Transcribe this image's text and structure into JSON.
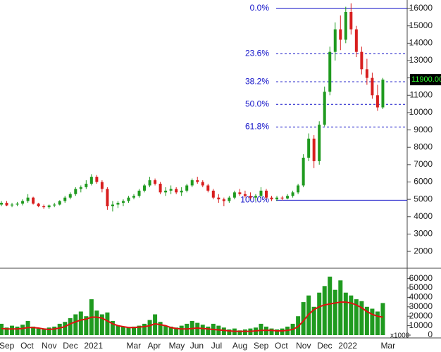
{
  "chart_data": [
    {
      "type": "candlestick",
      "categories": [
        "Sep",
        null,
        null,
        null,
        "Oct",
        null,
        null,
        null,
        "Nov",
        null,
        null,
        null,
        "Dec",
        null,
        null,
        null,
        "2021",
        null,
        null,
        null,
        null,
        null,
        null,
        null,
        "Mar",
        null,
        null,
        null,
        "Apr",
        null,
        null,
        null,
        "May",
        null,
        null,
        null,
        "Jun",
        null,
        null,
        null,
        "Jul",
        null,
        null,
        null,
        "Aug",
        null,
        null,
        null,
        "Sep",
        null,
        null,
        null,
        "Oct",
        null,
        null,
        null,
        "Nov",
        null,
        null,
        null,
        "Dec",
        null,
        null,
        null,
        "2022",
        null,
        null,
        null,
        null,
        null,
        null,
        null,
        "Mar"
      ],
      "open": [
        4700,
        4800,
        4650,
        4700,
        4750,
        4900,
        5100,
        4750,
        4600,
        4550,
        4650,
        4700,
        4900,
        5100,
        5300,
        5600,
        5700,
        5900,
        6300,
        6000,
        5600,
        4600,
        4700,
        4800,
        4900,
        5100,
        5200,
        5500,
        5800,
        6100,
        5900,
        5400,
        5500,
        5600,
        5400,
        5500,
        5800,
        6100,
        6000,
        5800,
        5500,
        5100,
        5000,
        4900,
        5100,
        5400,
        5300,
        5200,
        5100,
        5200,
        5500,
        5100,
        5000,
        5100,
        5050,
        5200,
        5400,
        5800,
        7400,
        8500,
        7200,
        9300,
        11200,
        13500,
        14800,
        14200,
        15800,
        14800,
        13500,
        12500,
        12000,
        11000,
        10300
      ],
      "high": [
        4900,
        4900,
        4800,
        4850,
        5000,
        5300,
        5150,
        4800,
        4700,
        4700,
        4800,
        4950,
        5200,
        5400,
        5700,
        5800,
        6100,
        6450,
        6400,
        6100,
        5700,
        4900,
        4900,
        5000,
        5200,
        5300,
        5600,
        5900,
        6300,
        6200,
        6000,
        5700,
        5800,
        5700,
        5700,
        5900,
        6200,
        6300,
        6100,
        5900,
        5600,
        5300,
        5100,
        5200,
        5500,
        5600,
        5500,
        5400,
        5300,
        5700,
        5600,
        5200,
        5200,
        5200,
        5300,
        5500,
        5900,
        7600,
        8800,
        8700,
        9500,
        11500,
        13800,
        15200,
        15600,
        16100,
        16300,
        15000,
        13800,
        13100,
        12300,
        11600,
        12000
      ],
      "low": [
        4600,
        4600,
        4550,
        4600,
        4650,
        4800,
        4700,
        4550,
        4450,
        4450,
        4550,
        4650,
        4800,
        5000,
        5200,
        5400,
        5600,
        5800,
        5900,
        5400,
        4400,
        4300,
        4500,
        4600,
        4800,
        5000,
        5100,
        5400,
        5700,
        5800,
        5300,
        5200,
        5300,
        5300,
        5200,
        5400,
        5700,
        5900,
        5700,
        5400,
        5000,
        4800,
        4600,
        4800,
        5000,
        5200,
        5100,
        5000,
        4900,
        5100,
        5000,
        4900,
        4900,
        4950,
        5000,
        5100,
        5300,
        5700,
        7200,
        6800,
        7000,
        9200,
        11000,
        13000,
        13600,
        14000,
        14500,
        13200,
        12200,
        11600,
        10800,
        10100,
        10200
      ],
      "close": [
        4800,
        4650,
        4700,
        4750,
        4900,
        5100,
        4750,
        4600,
        4550,
        4650,
        4700,
        4900,
        5100,
        5300,
        5600,
        5700,
        5900,
        6300,
        6000,
        5600,
        4600,
        4700,
        4800,
        4900,
        5100,
        5200,
        5500,
        5800,
        6100,
        5900,
        5400,
        5500,
        5600,
        5400,
        5500,
        5800,
        6100,
        6000,
        5800,
        5500,
        5100,
        5000,
        4900,
        5100,
        5400,
        5300,
        5200,
        5100,
        5200,
        5500,
        5100,
        5000,
        5100,
        5050,
        5200,
        5400,
        5800,
        7400,
        8500,
        7200,
        9300,
        11200,
        13500,
        14800,
        14200,
        15800,
        14800,
        13500,
        12500,
        12000,
        11000,
        10300,
        11900
      ],
      "up_color": "#1f9a1f",
      "down_color": "#d81e1e",
      "ylim": [
        1070,
        16490
      ],
      "yticks": [
        2000,
        3000,
        4000,
        5000,
        6000,
        7000,
        8000,
        9000,
        10000,
        11000,
        12000,
        13000,
        14000,
        15000,
        16000
      ],
      "fib_levels": [
        {
          "label": "0.0%",
          "value": 16000,
          "style": "solid"
        },
        {
          "label": "23.6%",
          "value": 13392,
          "style": "dashed"
        },
        {
          "label": "38.2%",
          "value": 11779,
          "style": "dashed"
        },
        {
          "label": "50.0%",
          "value": 10475,
          "style": "dashed"
        },
        {
          "label": "61.8%",
          "value": 9171,
          "style": "dashed"
        },
        {
          "label": "100.0%",
          "value": 4950,
          "style": "solid"
        }
      ],
      "fib_color": "#1010c8",
      "last_price": 11900,
      "last_price_label": "11900.00"
    },
    {
      "type": "bar",
      "values": [
        12000,
        8000,
        10000,
        9000,
        11000,
        15000,
        9000,
        7000,
        6000,
        8000,
        9000,
        12000,
        14000,
        18000,
        22000,
        25000,
        20000,
        38000,
        26000,
        22000,
        24000,
        15000,
        10000,
        9000,
        8000,
        9000,
        10000,
        12000,
        16000,
        22000,
        14000,
        10000,
        9000,
        8000,
        10000,
        12000,
        15000,
        13000,
        11000,
        9000,
        12000,
        10000,
        8000,
        6000,
        7000,
        5000,
        6000,
        7000,
        8000,
        12000,
        9000,
        7000,
        6000,
        7000,
        9000,
        12000,
        20000,
        35000,
        42000,
        30000,
        45000,
        52000,
        62000,
        48000,
        58000,
        45000,
        42000,
        38000,
        36000,
        30000,
        28000,
        25000,
        34000
      ],
      "color": "#1f9a1f",
      "moving_average": [
        7000,
        6500,
        6500,
        6500,
        7000,
        8000,
        8000,
        7500,
        6500,
        6000,
        6500,
        7500,
        9000,
        12000,
        14000,
        16000,
        17000,
        19000,
        19000,
        18000,
        15000,
        12000,
        10000,
        9000,
        8000,
        8000,
        8500,
        9000,
        10000,
        12000,
        11000,
        10000,
        8000,
        7000,
        6500,
        6500,
        7000,
        7500,
        7000,
        6500,
        6000,
        5500,
        5000,
        4500,
        4000,
        4000,
        4000,
        4000,
        4500,
        5000,
        5000,
        5000,
        4500,
        4500,
        5000,
        6000,
        9000,
        15000,
        22000,
        27000,
        30000,
        32000,
        33000,
        34000,
        35000,
        35000,
        34000,
        32000,
        29000,
        25000,
        22000,
        20000,
        19000
      ],
      "ma_color": "#e01010",
      "ylim": [
        0,
        69400
      ],
      "yticks": [
        0,
        10000,
        20000,
        30000,
        40000,
        50000,
        60000
      ],
      "unit_label": "x1000"
    }
  ]
}
